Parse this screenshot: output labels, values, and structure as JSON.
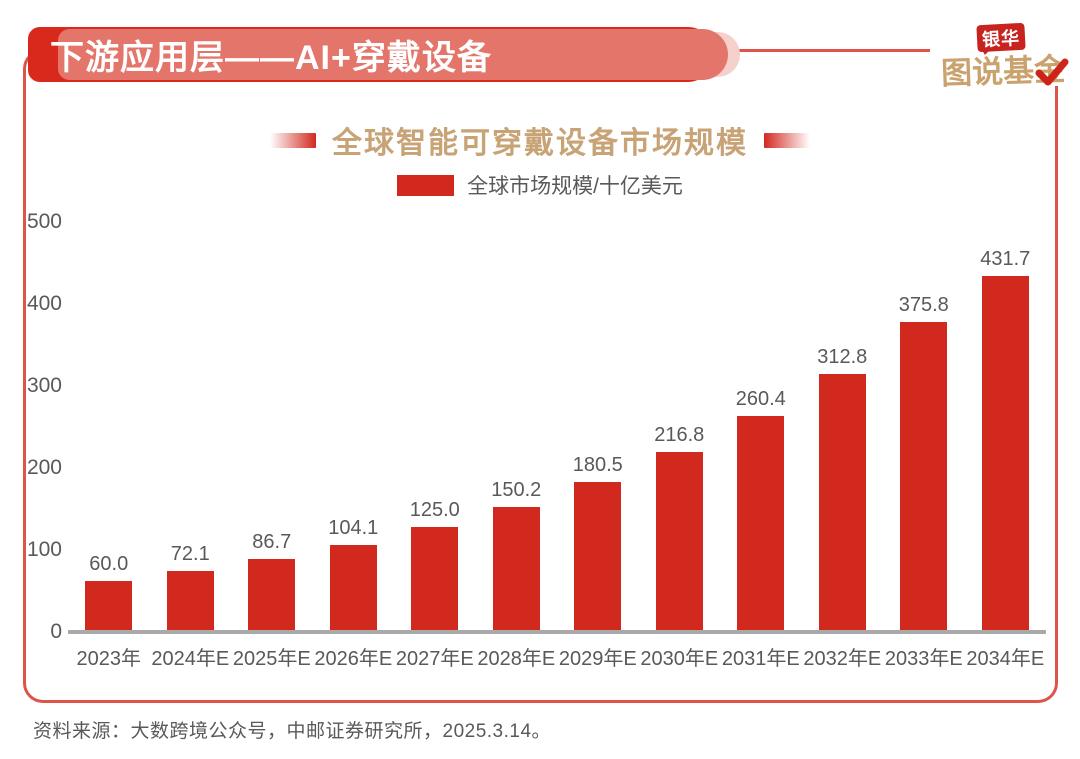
{
  "banner": {
    "title": "下游应用层——AI+穿戴设备"
  },
  "logo": {
    "badge_label": "银华",
    "brand_label": "图说基金"
  },
  "chart_header": {
    "title": "全球智能可穿戴设备市场规模"
  },
  "legend": {
    "label": "全球市场规模/十亿美元"
  },
  "footer": {
    "source_text": "资料来源：大数跨境公众号，中邮证券研究所，2025.3.14。"
  },
  "colors": {
    "bar_red": "#d2291f",
    "banner_red": "#d8291c",
    "frame_border_red": "#df544a",
    "logo_badge_red": "#c8231f",
    "check_red": "#ce2418",
    "title_gold": "#c7a376",
    "logo_gold": "#c9a26e",
    "text_gray": "#595959",
    "axis_gray": "#a9a9a9"
  },
  "chart_data": {
    "type": "bar",
    "title": "全球智能可穿戴设备市场规模",
    "categories": [
      "2023年",
      "2024年E",
      "2025年E",
      "2026年E",
      "2027年E",
      "2028年E",
      "2029年E",
      "2030年E",
      "2031年E",
      "2032年E",
      "2033年E",
      "2034年E"
    ],
    "values": [
      60.0,
      72.1,
      86.7,
      104.1,
      125.0,
      150.2,
      180.5,
      216.8,
      260.4,
      312.8,
      375.8,
      431.7
    ],
    "value_labels": [
      "60.0",
      "72.1",
      "86.7",
      "104.1",
      "125.0",
      "150.2",
      "180.5",
      "216.8",
      "260.4",
      "312.8",
      "375.8",
      "431.7"
    ],
    "series_name": "全球市场规模/十亿美元",
    "xlabel": "",
    "ylabel": "全球市场规模/十亿美元",
    "ylim": [
      0,
      500
    ],
    "yticks": [
      0,
      100,
      200,
      300,
      400,
      500
    ],
    "grid": false,
    "legend_position": "top",
    "bar_color": "#d2291f"
  }
}
